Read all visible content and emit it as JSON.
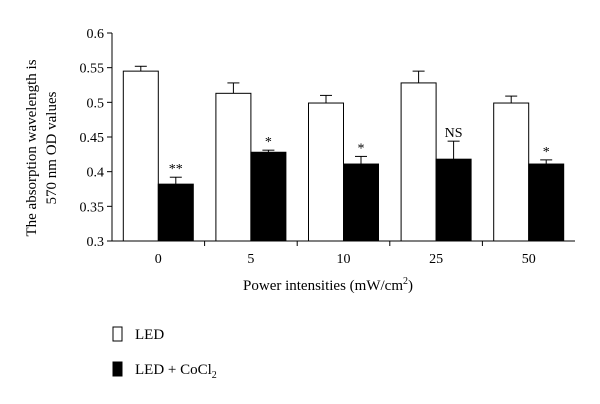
{
  "chart_data": {
    "type": "bar",
    "xlabel": "Power intensities (mW/cm",
    "xlabel_sup": "2",
    "xlabel_end": ")",
    "ylabel_line1": "The absorption wavelength is",
    "ylabel_line2": "570 nm OD values",
    "ylim": [
      0.3,
      0.6
    ],
    "yticks": [
      "0.3",
      "0.35",
      "0.4",
      "0.45",
      "0.5",
      "0.55",
      "0.6"
    ],
    "categories": [
      "0",
      "5",
      "10",
      "25",
      "50"
    ],
    "series": [
      {
        "name": "LED",
        "legend_label": "LED",
        "fill": "#ffffff",
        "values": [
          0.545,
          0.513,
          0.499,
          0.528,
          0.499
        ],
        "errors": [
          0.007,
          0.015,
          0.011,
          0.017,
          0.01
        ]
      },
      {
        "name": "LED + CoCl2",
        "legend_label": "LED + CoCl",
        "legend_sub": "2",
        "fill": "#000000",
        "values": [
          0.382,
          0.428,
          0.411,
          0.418,
          0.411
        ],
        "errors": [
          0.01,
          0.003,
          0.011,
          0.026,
          0.006
        ]
      }
    ],
    "annotations": [
      "**",
      "*",
      "*",
      "NS",
      "*"
    ],
    "grid": false,
    "legend_position": "bottom-left"
  }
}
